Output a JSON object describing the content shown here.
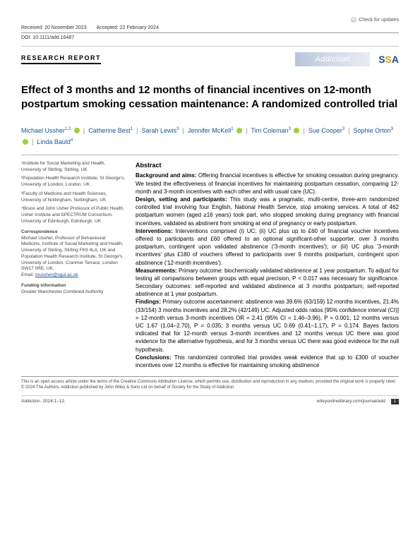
{
  "topbar": {
    "check": "Check for updates"
  },
  "meta": {
    "received": "Received: 20 November 2023",
    "accepted": "Accepted: 22 February 2024",
    "doi": "DOI: 10.1111/add.16487"
  },
  "header": {
    "section": "RESEARCH REPORT",
    "journal": "Addiction",
    "ssa": {
      "s1": "S",
      "s2": "S",
      "a": "A"
    }
  },
  "title": "Effect of 3 months and 12 months of financial incentives on 12-month postpartum smoking cessation maintenance: A randomized controlled trial",
  "authors": [
    {
      "name": "Michael Ussher",
      "sup": "1,2",
      "orcid": true
    },
    {
      "name": "Catherine Best",
      "sup": "1",
      "orcid": false
    },
    {
      "name": "Sarah Lewis",
      "sup": "3",
      "orcid": false
    },
    {
      "name": "Jennifer McKell",
      "sup": "1",
      "orcid": true
    },
    {
      "name": "Tim Coleman",
      "sup": "3",
      "orcid": true
    },
    {
      "name": "Sue Cooper",
      "sup": "3",
      "orcid": false
    },
    {
      "name": "Sophie Orton",
      "sup": "3",
      "orcid": true
    },
    {
      "name": "Linda Bauld",
      "sup": "4",
      "orcid": false
    }
  ],
  "affiliations": [
    "¹Institute for Social Marketing and Health, University of Stirling, Stirling, UK",
    "²Population Health Research Institute, St George's, University of London, London, UK",
    "³Faculty of Medicine and Health Sciences, University of Nottingham, Nottingham, UK",
    "⁴Bruce and John Usher Professor of Public Health, Usher Institute and SPECTRUM Consortium, University of Edinburgh, Edinburgh, UK"
  ],
  "correspondence": {
    "head": "Correspondence",
    "text": "Michael Ussher, Professor of Behavioural Medicine, Institute of Social Marketing and Health, University of Stirling, Stirling FK9 4LA, UK and Population Health Research Institute, St George's University of London, Cranmer Terrace, London SW17 0RE, UK.",
    "email_label": "Email: ",
    "email": "mussher@sgul.ac.uk"
  },
  "funding": {
    "head": "Funding information",
    "text": "Greater Manchester Combined Authority"
  },
  "abstract": {
    "head": "Abstract",
    "bg_label": "Background and aims:",
    "bg": " Offering financial incentives is effective for smoking cessation during pregnancy. We tested the effectiveness of financial incentives for maintaining postpartum cessation, comparing 12-month and 3-month incentives with each other and with usual care (UC).",
    "design_label": "Design, setting and participants:",
    "design": " This study was a pragmatic, multi-centre, three-arm randomized controlled trial involving four English, National Health Service, stop smoking services. A total of 462 postpartum women (aged ≥16 years) took part, who stopped smoking during pregnancy with financial incentives, validated as abstinent from smoking at end of pregnancy or early postpartum.",
    "int_label": "Interventions:",
    "int": " Interventions comprised (i) UC; (ii) UC plus up to £60 of financial voucher incentives offered to participants and £60 offered to an optional significant-other supporter, over 3 months postpartum, contingent upon validated abstinence ('3-month incentives'); or (iii) UC plus '3-month incentives' plus £180 of vouchers offered to participants over 9 months postpartum, contingent upon abstinence ('12-month incentives').",
    "meas_label": "Measurements:",
    "meas": " Primary outcome: biochemically validated abstinence at 1 year postpartum. To adjust for testing all comparisons between groups with equal precision, P < 0.017 was necessary for significance. Secondary outcomes: self-reported and validated abstinence at 3 months postpartum; self-reported abstinence at 1 year postpartum.",
    "find_label": "Findings:",
    "find": " Primary outcome ascertainment: abstinence was 39.6% (63/159) 12 months incentives, 21.4% (33/154) 3 months incentives and 28.2% (42/149) UC. Adjusted odds ratios [95% confidence interval (CI)] = 12-month versus 3-month incentives OR = 2.41 (95% CI = 1.46–3.96), P = 0.001; 12 months versus UC 1.67 (1.04–2.70), P = 0.035; 3 months versus UC 0.69 (0.41–1.17), P = 0.174. Bayes factors indicated that for 12-month versus 3-month incentives and 12 months versus UC there was good evidence for the alternative hypothesis, and for 3 months versus UC there was good evidence for the null hypothesis.",
    "conc_label": "Conclusions:",
    "conc": " This randomized controlled trial provides weak evidence that up to £300 of voucher incentives over 12 months is effective for maintaining smoking abstinence"
  },
  "footer": {
    "license": "This is an open access article under the terms of the Creative Commons Attribution License, which permits use, distribution and reproduction in any medium, provided the original work is properly cited.",
    "copyright": "© 2024 The Authors. Addiction published by John Wiley & Sons Ltd on behalf of Society for the Study of Addiction.",
    "citation": "Addiction. 2024;1–12.",
    "url": "wileyonlinelibrary.com/journal/add",
    "page": "1"
  }
}
